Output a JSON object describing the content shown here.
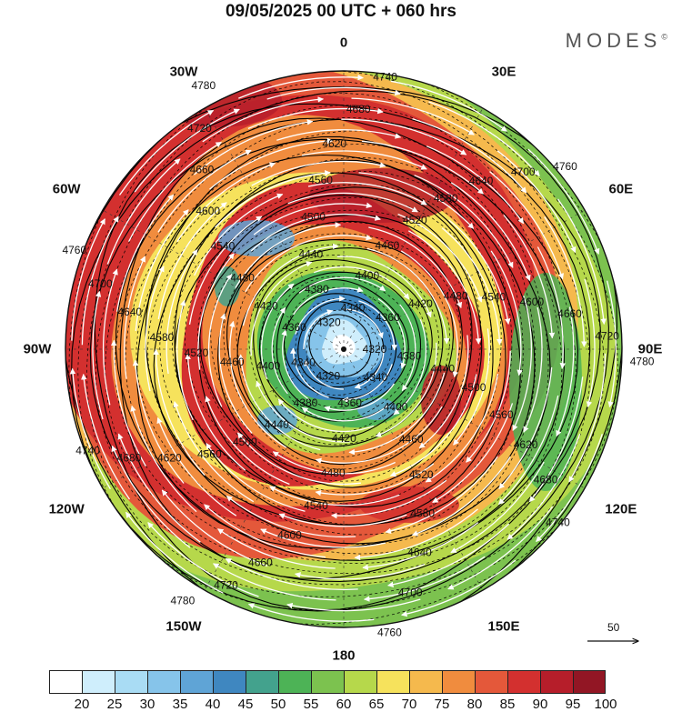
{
  "title": "09/05/2025  00 UTC  + 060 hrs",
  "brand": "MODES",
  "brand_mark": "©",
  "longitude_labels": [
    "0",
    "30E",
    "60E",
    "90E",
    "120E",
    "150E",
    "180",
    "150W",
    "120W",
    "90W",
    "60W",
    "30W"
  ],
  "contour_labels": [
    "4320",
    "4340",
    "4360",
    "4380",
    "4400",
    "4420",
    "4440",
    "4460",
    "4480",
    "4500",
    "4520",
    "4540",
    "4560",
    "4580",
    "4600",
    "4620",
    "4640",
    "4660",
    "4680",
    "4700",
    "4720",
    "4740",
    "4760",
    "4780"
  ],
  "reference_vector": "50",
  "colorbar": {
    "ticks": [
      "20",
      "25",
      "30",
      "35",
      "40",
      "45",
      "50",
      "55",
      "60",
      "65",
      "70",
      "75",
      "80",
      "85",
      "90",
      "95",
      "100"
    ],
    "colors": [
      "#ffffff",
      "#cfeefc",
      "#a9dcf4",
      "#86c4ea",
      "#5fa4d6",
      "#3f87c0",
      "#43a28d",
      "#4db356",
      "#7cc24f",
      "#b6d84b",
      "#f6e25c",
      "#f5b94d",
      "#f08c3e",
      "#e4583a",
      "#d3302f",
      "#b61e2a",
      "#921624"
    ]
  },
  "colors": {
    "ocean_bg": "#ffffff",
    "contour": "#000000",
    "streamline": "#ffffff"
  }
}
